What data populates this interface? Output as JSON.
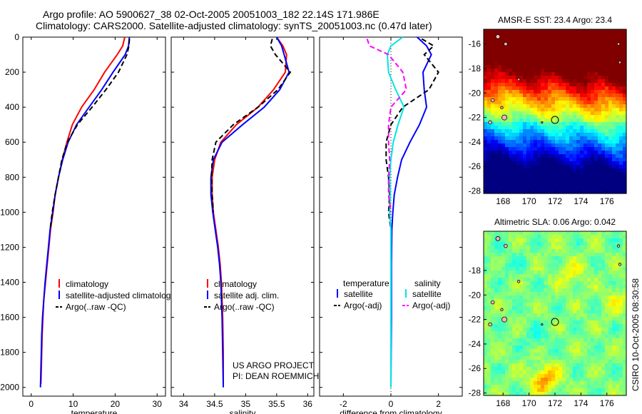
{
  "header": {
    "line1": "Argo profile: AO 5900627_38 02-Oct-2005 20051003_182 22.14S 171.986E",
    "line2": "Climatology: CARS2000. Satellite-adjusted climatology: synTS_20051003.nc (0.47d later)"
  },
  "credit": "CSIRO 10-Oct-2005 08:30:58",
  "colors": {
    "red": "#ff0000",
    "blue": "#0000ff",
    "black": "#000000",
    "cyan": "#00e5e5",
    "magenta": "#ff00ff"
  },
  "chart_data": [
    {
      "id": "temperature",
      "type": "line",
      "xlabel": "temperature",
      "ylabel": "",
      "xlim": [
        -2,
        32
      ],
      "ylim": [
        0,
        2050
      ],
      "xticks": [
        0,
        10,
        20,
        30
      ],
      "xtick_labels": [
        "0",
        "10",
        "20",
        "30"
      ],
      "yticks": [
        0,
        200,
        400,
        600,
        800,
        1000,
        1200,
        1400,
        1600,
        1800,
        2000
      ],
      "ytick_labels": [
        "0",
        "200",
        "400",
        "600",
        "800",
        "1000",
        "1200",
        "1400",
        "1600",
        "1800",
        "2000"
      ],
      "y_reversed": true,
      "legend": {
        "position": "lower-center",
        "entries": [
          "climatology",
          "satellite-adjusted climatology",
          "Argo(..raw -QC)"
        ]
      },
      "series": [
        {
          "name": "climatology",
          "color": "#ff0000",
          "dash": "solid",
          "x": [
            22.3,
            21.8,
            20.5,
            17.5,
            15.0,
            12.0,
            9.8,
            8.5,
            7.4,
            6.5,
            5.7,
            5.2,
            4.6,
            4.2,
            3.8,
            3.4,
            3.0,
            2.8,
            2.6,
            2.5,
            2.4,
            2.3
          ],
          "y": [
            0,
            50,
            100,
            200,
            300,
            400,
            500,
            600,
            700,
            800,
            900,
            1000,
            1100,
            1200,
            1300,
            1400,
            1500,
            1600,
            1700,
            1800,
            1900,
            1980
          ]
        },
        {
          "name": "satellite-adjusted climatology",
          "color": "#0000ff",
          "dash": "solid",
          "x": [
            23.4,
            23.2,
            22.4,
            19.5,
            16.8,
            13.8,
            10.8,
            8.8,
            7.5,
            6.5,
            5.7,
            5.1,
            4.5,
            4.1,
            3.7,
            3.3,
            3.0,
            2.7,
            2.5,
            2.4,
            2.3,
            2.2
          ],
          "y": [
            0,
            50,
            100,
            200,
            300,
            400,
            500,
            600,
            700,
            800,
            900,
            1000,
            1100,
            1200,
            1300,
            1400,
            1500,
            1600,
            1700,
            1800,
            1900,
            2000
          ]
        },
        {
          "name": "Argo(..raw -QC)",
          "color": "#000000",
          "dash": "dashed",
          "x": [
            23.4,
            23.3,
            22.8,
            20.8,
            17.8,
            14.5,
            11.0,
            8.6,
            7.3,
            6.5,
            5.7,
            5.0,
            4.5
          ],
          "y": [
            10,
            50,
            100,
            200,
            300,
            400,
            500,
            600,
            700,
            800,
            900,
            1000,
            1100
          ]
        }
      ]
    },
    {
      "id": "salinity",
      "type": "line",
      "xlabel": "salinity",
      "ylabel": "",
      "xlim": [
        33.8,
        36.1
      ],
      "ylim": [
        0,
        2050
      ],
      "xticks": [
        34,
        34.5,
        35,
        35.5,
        36
      ],
      "xtick_labels": [
        "34",
        "34.5",
        "35",
        "35.5",
        "36"
      ],
      "y_reversed": true,
      "legend": {
        "position": "lower-center",
        "entries": [
          "climatology",
          "satellite adj. clim.",
          "Argo(..raw -QC)"
        ]
      },
      "annotation": {
        "line1": "US ARGO PROJECT",
        "line2": "PI: DEAN ROEMMICH"
      },
      "series": [
        {
          "name": "climatology",
          "color": "#ff0000",
          "dash": "solid",
          "x": [
            35.5,
            35.6,
            35.66,
            35.64,
            35.45,
            35.2,
            34.85,
            34.6,
            34.5,
            34.46,
            34.46,
            34.48,
            34.52,
            34.56,
            34.59,
            34.61,
            34.62,
            34.63,
            34.64,
            34.64
          ],
          "y": [
            0,
            50,
            100,
            200,
            300,
            400,
            500,
            600,
            700,
            800,
            900,
            1000,
            1100,
            1200,
            1300,
            1400,
            1500,
            1600,
            1800,
            1980
          ]
        },
        {
          "name": "satellite adj. clim.",
          "color": "#0000ff",
          "dash": "solid",
          "x": [
            35.5,
            35.58,
            35.62,
            35.7,
            35.55,
            35.3,
            34.95,
            34.62,
            34.48,
            34.44,
            34.44,
            34.47,
            34.51,
            34.55,
            34.58,
            34.6,
            34.61,
            34.62,
            34.63,
            34.64
          ],
          "y": [
            0,
            50,
            100,
            200,
            300,
            400,
            500,
            600,
            700,
            800,
            900,
            1000,
            1100,
            1200,
            1300,
            1400,
            1500,
            1600,
            1800,
            2000
          ]
        },
        {
          "name": "Argo(..raw -QC)",
          "color": "#000000",
          "dash": "dashed",
          "x": [
            35.43,
            35.4,
            35.48,
            35.72,
            35.52,
            35.2,
            34.8,
            34.52,
            34.46,
            34.45,
            34.46,
            34.48
          ],
          "y": [
            10,
            50,
            100,
            200,
            300,
            400,
            500,
            600,
            700,
            800,
            900,
            1000
          ]
        }
      ]
    },
    {
      "id": "difference",
      "type": "line",
      "xlabel": "difference from climatology",
      "ylabel": "",
      "xlim": [
        -3.0,
        3.0
      ],
      "ylim": [
        0,
        2050
      ],
      "xticks": [
        -2,
        0,
        2
      ],
      "xtick_labels": [
        "-2",
        "0",
        "2"
      ],
      "y_reversed": true,
      "zero_line": "dotted",
      "legend": {
        "position": "lower-center",
        "temperature_heading": "temperature",
        "salinity_heading": "salinity",
        "entries": [
          "satellite",
          "Argo(-adj)",
          "satellite",
          "Argo(-adj)"
        ]
      },
      "series": [
        {
          "name": "temperature satellite",
          "color": "#0000ff",
          "dash": "solid",
          "x": [
            1.1,
            1.5,
            1.7,
            1.35,
            1.4,
            1.5,
            1.2,
            0.8,
            0.45,
            0.28,
            0.14,
            0.08,
            0.04,
            0.03,
            0.02,
            0.02,
            0.02,
            0.02,
            0.01,
            0.0
          ],
          "y": [
            0,
            50,
            100,
            200,
            300,
            400,
            500,
            600,
            700,
            800,
            900,
            1000,
            1100,
            1200,
            1300,
            1400,
            1500,
            1600,
            1800,
            2000
          ]
        },
        {
          "name": "temperature Argo(-adj)",
          "color": "#000000",
          "dash": "dashed",
          "x": [
            1.3,
            1.8,
            1.4,
            2.0,
            1.6,
            0.5,
            0.0,
            -0.2,
            -0.2,
            -0.1,
            -0.05,
            -0.1,
            0.0
          ],
          "y": [
            10,
            50,
            100,
            200,
            300,
            400,
            500,
            600,
            700,
            800,
            900,
            1000,
            1100
          ]
        },
        {
          "name": "salinity satellite",
          "color": "#00e5e5",
          "dash": "solid",
          "x": [
            0.5,
            0.0,
            -0.15,
            -0.1,
            0.2,
            0.55,
            0.3,
            0.1,
            0.0,
            -0.05,
            -0.02,
            -0.05,
            0.0,
            0.0,
            0.0,
            0.0
          ],
          "y": [
            0,
            50,
            100,
            200,
            300,
            400,
            500,
            600,
            700,
            800,
            900,
            1000,
            1100,
            1200,
            1500,
            2000
          ]
        },
        {
          "name": "salinity Argo(-adj)",
          "color": "#ff00ff",
          "dash": "dashed",
          "x": [
            -1.0,
            -0.9,
            -0.1,
            0.5,
            0.65,
            0.0,
            -0.1,
            -0.1,
            -0.05,
            -0.1,
            -0.1,
            0.0
          ],
          "y": [
            10,
            50,
            100,
            200,
            300,
            400,
            500,
            600,
            700,
            800,
            900,
            1000
          ]
        }
      ]
    },
    {
      "id": "sst-map",
      "type": "heatmap",
      "title": "AMSR-E SST: 23.4 Argo: 23.4",
      "xlim": [
        166.5,
        177.5
      ],
      "ylim": [
        -28.2,
        -14.8
      ],
      "xticks": [
        168,
        170,
        172,
        174,
        176
      ],
      "xtick_labels": [
        "168",
        "170",
        "172",
        "174",
        "176"
      ],
      "yticks": [
        -16,
        -18,
        -20,
        -22,
        -24,
        -26,
        -28
      ],
      "ytick_labels": [
        "-16",
        "-18",
        "-20",
        "-22",
        "-24",
        "-26",
        "-28"
      ],
      "colormap": "jet",
      "marker": {
        "lon": 172.0,
        "lat": -22.2
      }
    },
    {
      "id": "sla-map",
      "type": "heatmap",
      "title": "Altimetric SLA: 0.06 Argo: 0.042",
      "xlim": [
        166.5,
        177.5
      ],
      "ylim": [
        -28.2,
        -14.8
      ],
      "xticks": [
        168,
        170,
        172,
        174,
        176
      ],
      "xtick_labels": [
        "168",
        "170",
        "172",
        "174",
        "176"
      ],
      "yticks": [
        -18,
        -20,
        -22,
        -24,
        -26,
        -28
      ],
      "ytick_labels": [
        "-18",
        "-20",
        "-22",
        "-24",
        "-26",
        "-28"
      ],
      "colormap": "jet",
      "marker": {
        "lon": 172.0,
        "lat": -22.2
      }
    }
  ]
}
